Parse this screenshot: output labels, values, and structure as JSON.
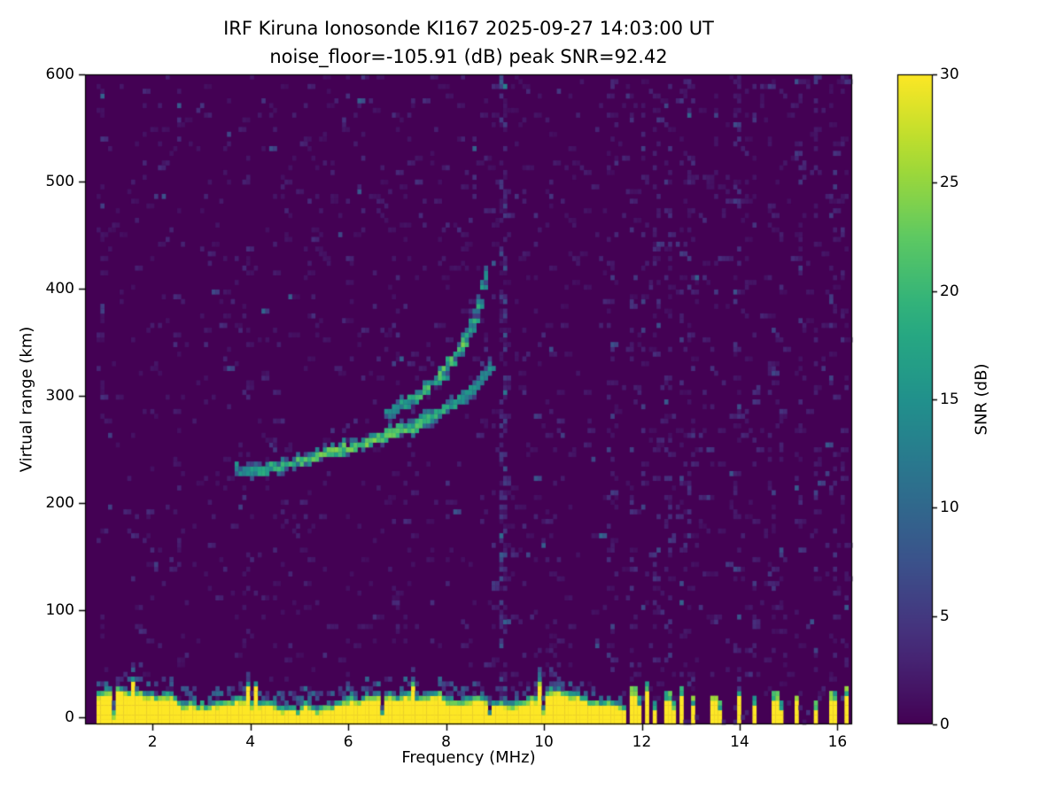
{
  "chart_data": {
    "type": "heatmap",
    "title": "IRF Kiruna Ionosonde KI167 2025-09-27 14:03:00  UT",
    "subtitle": "noise_floor=-105.91 (dB) peak SNR=92.42",
    "xlabel": "Frequency (MHz)",
    "ylabel": "Virtual range (km)",
    "xlim": [
      0.62,
      16.3
    ],
    "ylim": [
      -7,
      600
    ],
    "xticks": [
      2,
      4,
      6,
      8,
      10,
      12,
      14,
      16
    ],
    "yticks": [
      0,
      100,
      200,
      300,
      400,
      500,
      600
    ],
    "grid": false,
    "noise_floor_db": -105.91,
    "peak_snr_db": 92.42,
    "colorbar": {
      "label": "SNR (dB)",
      "min": 0,
      "max": 30,
      "ticks": [
        0,
        5,
        10,
        15,
        20,
        25,
        30
      ],
      "colormap": "viridis",
      "stops": [
        "#440154",
        "#472d7b",
        "#3b528b",
        "#2c728e",
        "#21918c",
        "#28ae80",
        "#5ec962",
        "#addc30",
        "#fde725"
      ]
    },
    "data_freq_range": [
      0.88,
      16.22
    ],
    "ground_clutter": {
      "freq_start": 0.88,
      "freq_end": 11.68,
      "top_km_min": 10,
      "top_km_max": 34,
      "snr": 30
    },
    "clutter_bars": [
      {
        "freq": 11.78,
        "height": 24,
        "wide": true
      },
      {
        "freq": 11.93,
        "height": 14,
        "wide": false
      },
      {
        "freq": 12.07,
        "height": 28,
        "wide": false
      },
      {
        "freq": 12.3,
        "height": 12,
        "wide": false
      },
      {
        "freq": 12.5,
        "height": 20,
        "wide": true
      },
      {
        "freq": 12.68,
        "height": 10,
        "wide": false
      },
      {
        "freq": 12.85,
        "height": 24,
        "wide": false
      },
      {
        "freq": 13.02,
        "height": 16,
        "wide": false
      },
      {
        "freq": 13.45,
        "height": 18,
        "wide": true
      },
      {
        "freq": 13.6,
        "height": 10,
        "wide": false
      },
      {
        "freq": 13.95,
        "height": 22,
        "wide": false
      },
      {
        "freq": 14.3,
        "height": 14,
        "wide": false
      },
      {
        "freq": 14.68,
        "height": 20,
        "wide": true
      },
      {
        "freq": 14.85,
        "height": 10,
        "wide": false
      },
      {
        "freq": 15.18,
        "height": 18,
        "wide": false
      },
      {
        "freq": 15.52,
        "height": 12,
        "wide": false
      },
      {
        "freq": 15.9,
        "height": 20,
        "wide": true
      },
      {
        "freq": 16.15,
        "height": 24,
        "wide": false
      }
    ],
    "traces": [
      {
        "name": "F-region echo lower branch",
        "points": [
          [
            3.7,
            231
          ],
          [
            4.0,
            230
          ],
          [
            4.3,
            232
          ],
          [
            4.6,
            234
          ],
          [
            4.9,
            237
          ],
          [
            5.2,
            241
          ],
          [
            5.5,
            245
          ],
          [
            5.8,
            249
          ],
          [
            6.1,
            253
          ],
          [
            6.4,
            257
          ],
          [
            6.7,
            262
          ],
          [
            7.0,
            267
          ],
          [
            7.3,
            272
          ],
          [
            7.6,
            278
          ],
          [
            7.9,
            285
          ],
          [
            8.15,
            292
          ],
          [
            8.4,
            301
          ],
          [
            8.6,
            310
          ],
          [
            8.78,
            320
          ],
          [
            8.92,
            330
          ]
        ]
      },
      {
        "name": "F-region echo upper branch",
        "points": [
          [
            6.8,
            283
          ],
          [
            7.1,
            291
          ],
          [
            7.4,
            300
          ],
          [
            7.7,
            311
          ],
          [
            7.95,
            322
          ],
          [
            8.15,
            334
          ],
          [
            8.32,
            347
          ],
          [
            8.46,
            360
          ],
          [
            8.58,
            374
          ],
          [
            8.67,
            388
          ],
          [
            8.74,
            402
          ],
          [
            8.8,
            415
          ],
          [
            8.84,
            424
          ]
        ]
      }
    ],
    "interference_columns": [
      {
        "freq": 0.95,
        "strength": 0.2
      },
      {
        "freq": 9.15,
        "strength": 0.8
      },
      {
        "freq": 11.35,
        "strength": 0.15
      },
      {
        "freq": 11.78,
        "strength": 0.3
      },
      {
        "freq": 12.05,
        "strength": 0.25
      },
      {
        "freq": 12.3,
        "strength": 0.2
      },
      {
        "freq": 12.55,
        "strength": 0.25
      },
      {
        "freq": 12.8,
        "strength": 0.2
      },
      {
        "freq": 13.0,
        "strength": 0.25
      },
      {
        "freq": 13.5,
        "strength": 0.2
      },
      {
        "freq": 13.95,
        "strength": 0.25
      },
      {
        "freq": 14.3,
        "strength": 0.2
      },
      {
        "freq": 14.65,
        "strength": 0.25
      },
      {
        "freq": 14.85,
        "strength": 0.15
      },
      {
        "freq": 15.2,
        "strength": 0.2
      },
      {
        "freq": 15.55,
        "strength": 0.2
      },
      {
        "freq": 15.9,
        "strength": 0.25
      },
      {
        "freq": 16.15,
        "strength": 0.2
      }
    ]
  }
}
